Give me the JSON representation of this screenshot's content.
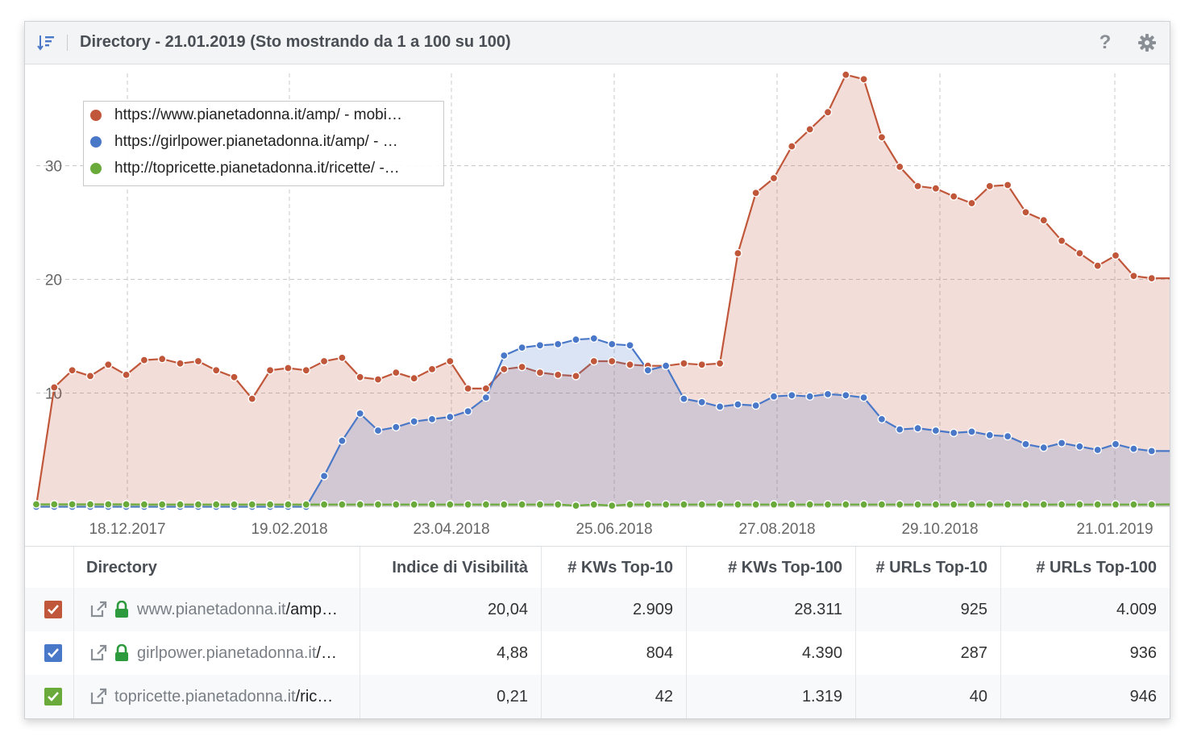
{
  "header": {
    "title": "Directory - 21.01.2019 (Sto mostrando da 1 a 100 su 100)",
    "help_glyph": "?",
    "sort_icon": "sort-icon",
    "settings_icon": "gear-icon"
  },
  "chart_data": {
    "type": "area",
    "y_ticks": [
      "10",
      "20",
      "30"
    ],
    "ylim": [
      0,
      40
    ],
    "x_tick_labels": [
      "18.12.2017",
      "19.02.2018",
      "23.04.2018",
      "25.06.2018",
      "27.08.2018",
      "29.10.2018",
      "21.01.2019"
    ],
    "grid": true,
    "legend_position": "top-left",
    "series": [
      {
        "name": "https://www.pianetadonna.it/amp/ - mobi…",
        "color": "#c1573a",
        "values": [
          0.1,
          10.5,
          12,
          11.5,
          12.5,
          11.6,
          12.9,
          13,
          12.6,
          12.8,
          12,
          11.4,
          9.5,
          12,
          12.2,
          12,
          12.8,
          13.1,
          11.4,
          11.2,
          11.8,
          11.3,
          12.1,
          12.8,
          10.4,
          10.4,
          12.1,
          12.3,
          11.8,
          11.6,
          11.5,
          12.8,
          12.8,
          12.5,
          12.4,
          12.4,
          12.6,
          12.5,
          12.6,
          22.3,
          27.6,
          28.9,
          31.7,
          33.2,
          34.7,
          38,
          37.6,
          32.5,
          29.9,
          28.2,
          28,
          27.3,
          26.7,
          28.2,
          28.3,
          25.9,
          25.2,
          23.4,
          22.3,
          21.2,
          22.1,
          20.3,
          20.1,
          20.1
        ]
      },
      {
        "name": "https://girlpower.pianetadonna.it/amp/ - …",
        "color": "#4a78c8",
        "values": [
          0,
          0,
          0,
          0,
          0,
          0,
          0,
          0,
          0,
          0,
          0,
          0,
          0,
          0,
          0,
          0,
          2.7,
          5.8,
          8.2,
          6.7,
          7,
          7.5,
          7.7,
          7.9,
          8.4,
          9.6,
          13.3,
          14,
          14.2,
          14.3,
          14.7,
          14.8,
          14.3,
          14.2,
          12,
          12.4,
          9.5,
          9.2,
          8.8,
          9,
          8.9,
          9.7,
          9.8,
          9.7,
          9.9,
          9.8,
          9.6,
          7.7,
          6.8,
          6.9,
          6.7,
          6.5,
          6.6,
          6.3,
          6.2,
          5.5,
          5.2,
          5.6,
          5.3,
          5,
          5.5,
          5.1,
          4.9,
          4.9
        ]
      },
      {
        "name": "http://topricette.pianetadonna.it/ricette/ -…",
        "color": "#6aaa3a",
        "values": [
          0.21,
          0.21,
          0.21,
          0.21,
          0.21,
          0.21,
          0.2,
          0.2,
          0.2,
          0.2,
          0.2,
          0.2,
          0.2,
          0.2,
          0.2,
          0.2,
          0.2,
          0.2,
          0.2,
          0.2,
          0.2,
          0.2,
          0.2,
          0.2,
          0.2,
          0.2,
          0.2,
          0.2,
          0.2,
          0.2,
          0.1,
          0.2,
          0.1,
          0.2,
          0.2,
          0.2,
          0.2,
          0.2,
          0.2,
          0.2,
          0.2,
          0.2,
          0.2,
          0.2,
          0.2,
          0.2,
          0.2,
          0.2,
          0.2,
          0.2,
          0.2,
          0.2,
          0.2,
          0.2,
          0.2,
          0.2,
          0.2,
          0.2,
          0.2,
          0.2,
          0.2,
          0.2,
          0.2,
          0.21
        ]
      }
    ]
  },
  "table": {
    "headers": [
      "Directory",
      "Indice di Visibilità",
      "# KWs Top-10",
      "# KWs Top-100",
      "# URLs Top-10",
      "# URLs Top-100"
    ],
    "rows": [
      {
        "checkbox_color": "#c1573a",
        "domain": "www.pianetadonna.it",
        "path": "/amp…",
        "secure": true,
        "visibility": "20,04",
        "kw10": "2.909",
        "kw100": "28.311",
        "url10": "925",
        "url100": "4.009"
      },
      {
        "checkbox_color": "#4a78c8",
        "domain": "girlpower.pianetadonna.it",
        "path": "/…",
        "secure": true,
        "visibility": "4,88",
        "kw10": "804",
        "kw100": "4.390",
        "url10": "287",
        "url100": "936"
      },
      {
        "checkbox_color": "#6aaa3a",
        "domain": "topricette.pianetadonna.it",
        "path": "/ric…",
        "secure": false,
        "visibility": "0,21",
        "kw10": "42",
        "kw100": "1.319",
        "url10": "40",
        "url100": "946"
      }
    ]
  }
}
